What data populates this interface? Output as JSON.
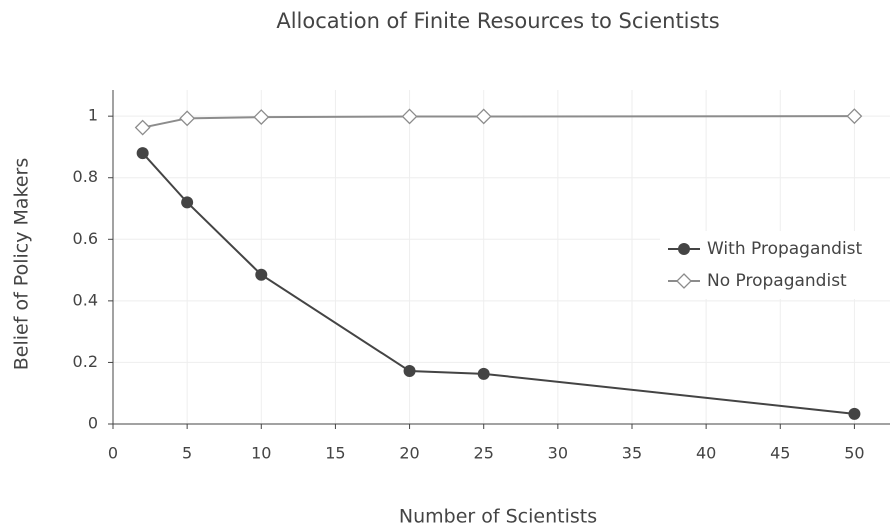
{
  "chart_data": {
    "type": "line",
    "title": "Allocation of Finite Resources to Scientists",
    "x_label": "Number of Scientists",
    "y_label": "Belief of Policy Makers",
    "x": [
      2,
      5,
      10,
      20,
      25,
      50
    ],
    "series": [
      {
        "name": "With Propagandist",
        "color": "#444444",
        "marker": "circle",
        "values": [
          0.88,
          0.72,
          0.485,
          0.172,
          0.163,
          0.033
        ]
      },
      {
        "name": "No Propagandist",
        "color": "#8c8c8c",
        "marker": "diamond",
        "values": [
          0.963,
          0.993,
          0.997,
          0.999,
          0.999,
          1.0
        ]
      }
    ],
    "xlim": [
      0,
      52.4
    ],
    "ylim": [
      0,
      1.085
    ],
    "xticks": [
      0,
      5,
      10,
      15,
      20,
      25,
      30,
      35,
      40,
      45,
      50
    ],
    "yticks": [
      0,
      0.2,
      0.4,
      0.6,
      0.8,
      1
    ],
    "grid": true,
    "legend": "right"
  }
}
